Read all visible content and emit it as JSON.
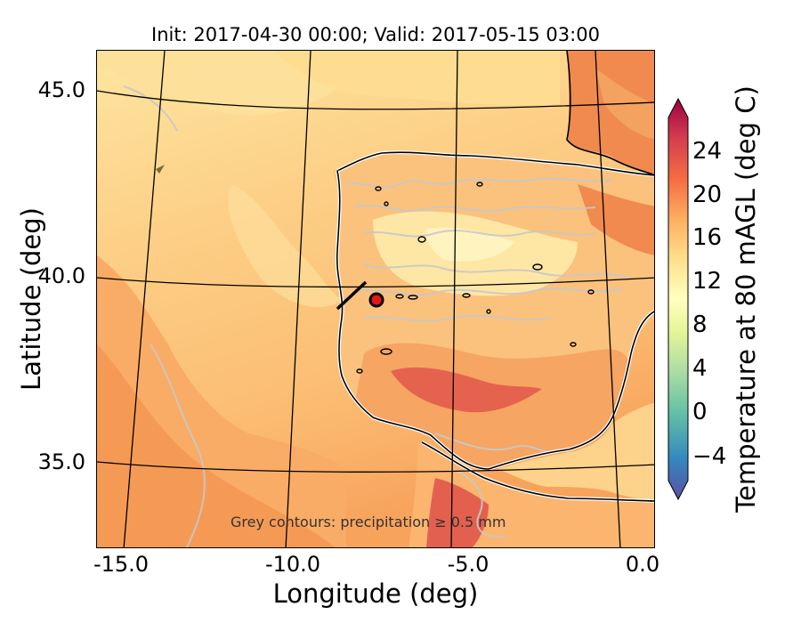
{
  "title": "Init: 2017-04-30 00:00; Valid: 2017-05-15 03:00",
  "map": {
    "kind": "filled-contour temperature map, Lambert projection",
    "region": "Iberian Peninsula and NE Atlantic",
    "lon_range": [
      -16,
      0
    ],
    "lat_range": [
      32.8,
      46.2
    ],
    "note": "Grey contours: precipitation ≥ 0.5 mm",
    "site_marker_color": "#e8141c",
    "graticule_color": "#000000",
    "land_warm_color": "#f4a25f",
    "ocean_color": "#fcc878"
  },
  "axes": {
    "xlabel": "Longitude (deg)",
    "ylabel": "Latitude (deg)",
    "xticks": [
      "-15.0",
      "-10.0",
      "-5.0",
      "0.0"
    ],
    "yticks": [
      "45.0",
      "40.0",
      "35.0"
    ]
  },
  "colorbar": {
    "label": "Temperature at 80 mAGL (deg C)",
    "ticks": [
      "24",
      "20",
      "16",
      "12",
      "8",
      "4",
      "0",
      "−4"
    ],
    "colormap": "Spectral_r",
    "extend": "both",
    "stops": [
      "#5e4fa2",
      "#3288bd",
      "#66c2a5",
      "#abdda4",
      "#e6f598",
      "#ffffbf",
      "#fee08b",
      "#fdae61",
      "#f46d43",
      "#d53e4f",
      "#9e0142"
    ]
  }
}
